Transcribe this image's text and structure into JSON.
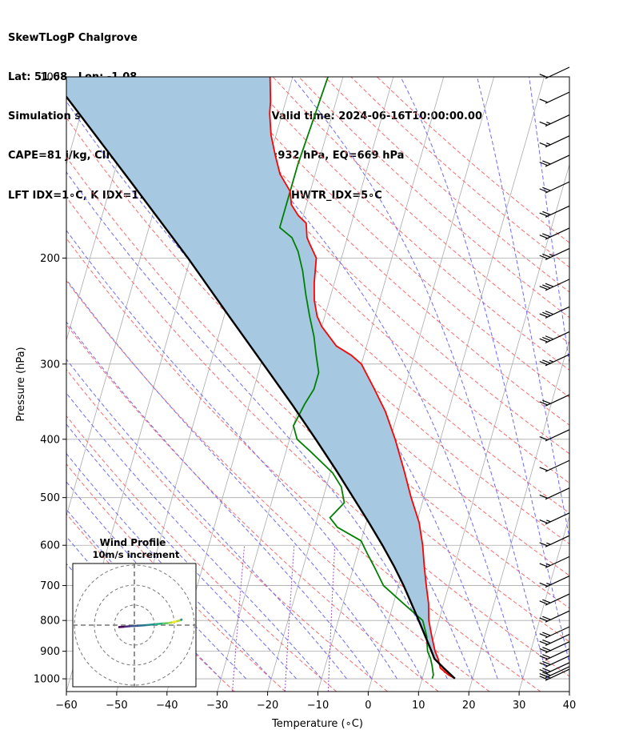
{
  "header": {
    "line1": "SkewTLogP Chalgrove",
    "line2": "Lat: 51.68   Lon: -1.08",
    "line3": "Simulation start time: 2024-06-14_00:00:00, Valid time: 2024-06-16T10:00:00.00",
    "line4": "CAPE=81 j/kg, CIN=0 j/kg, LCL=926 hPa, LFC=932 hPa, EQ=669 hPa",
    "line5": "LFT IDX=1∘C, K IDX=17∘C, TOTAL TOTS=48∘C, SHWTR_IDX=5∘C"
  },
  "colors": {
    "temperature": "#ff0000",
    "dewpoint": "#008000",
    "parcel": "#000000",
    "cape_fill": "#a6c8e1",
    "cin_fill": "#f4a0a0",
    "dry_adiabat": "#ff6a6a",
    "moist_adiabat": "#6b6bff",
    "mixing_ratio": "#9a4fd0",
    "isotherm": "#aaaaaa"
  },
  "chart_data": [
    {
      "type": "line",
      "subtype": "skew-T log-P",
      "xlabel": "Temperature (∘C)",
      "ylabel": "Pressure (hPa)",
      "xlim": [
        -60,
        40
      ],
      "ylim": [
        1050,
        100
      ],
      "y_scale": "log",
      "x_ticks": [
        -60,
        -50,
        -40,
        -30,
        -20,
        -10,
        0,
        10,
        20,
        30,
        40
      ],
      "y_ticks": [
        1000,
        900,
        800,
        700,
        600,
        500,
        400,
        300,
        200,
        100
      ],
      "grid": true,
      "series": [
        {
          "key": "temperature",
          "points": [
            [
              999,
              16.5
            ],
            [
              985,
              15
            ],
            [
              960,
              13
            ],
            [
              925,
              12
            ],
            [
              900,
              11
            ],
            [
              850,
              9.5
            ],
            [
              800,
              8
            ],
            [
              750,
              7
            ],
            [
              700,
              5.5
            ],
            [
              650,
              4
            ],
            [
              600,
              2.5
            ],
            [
              550,
              0.5
            ],
            [
              500,
              -2.5
            ],
            [
              450,
              -5.5
            ],
            [
              400,
              -9
            ],
            [
              360,
              -12.5
            ],
            [
              330,
              -16
            ],
            [
              300,
              -20
            ],
            [
              290,
              -22.5
            ],
            [
              280,
              -26
            ],
            [
              260,
              -30
            ],
            [
              250,
              -31.5
            ],
            [
              235,
              -33
            ],
            [
              220,
              -34
            ],
            [
              200,
              -35
            ],
            [
              190,
              -37
            ],
            [
              185,
              -38
            ],
            [
              175,
              -39
            ],
            [
              170,
              -41
            ],
            [
              163,
              -43
            ],
            [
              155,
              -44
            ],
            [
              145,
              -47
            ],
            [
              135,
              -49
            ],
            [
              125,
              -51
            ],
            [
              115,
              -52.5
            ],
            [
              110,
              -53
            ],
            [
              100,
              -54.5
            ]
          ]
        },
        {
          "key": "dewpoint",
          "points": [
            [
              999,
              12
            ],
            [
              985,
              12
            ],
            [
              950,
              11.2
            ],
            [
              925,
              10.5
            ],
            [
              900,
              9.5
            ],
            [
              850,
              8.5
            ],
            [
              800,
              6.8
            ],
            [
              750,
              2
            ],
            [
              700,
              -3
            ],
            [
              650,
              -6
            ],
            [
              620,
              -8
            ],
            [
              590,
              -10
            ],
            [
              560,
              -15.5
            ],
            [
              540,
              -17.5
            ],
            [
              510,
              -15.5
            ],
            [
              480,
              -17
            ],
            [
              455,
              -19.5
            ],
            [
              420,
              -25
            ],
            [
              400,
              -28.5
            ],
            [
              380,
              -30
            ],
            [
              350,
              -29
            ],
            [
              330,
              -28
            ],
            [
              310,
              -28
            ],
            [
              290,
              -29.5
            ],
            [
              270,
              -31
            ],
            [
              250,
              -33
            ],
            [
              230,
              -35
            ],
            [
              210,
              -37
            ],
            [
              195,
              -39
            ],
            [
              185,
              -41
            ],
            [
              178,
              -44
            ],
            [
              140,
              -44
            ],
            [
              100,
              -43
            ]
          ]
        },
        {
          "key": "parcel",
          "points": [
            [
              999,
              16.5
            ],
            [
              960,
              13.7
            ],
            [
              926,
              11.3
            ],
            [
              900,
              10.3
            ],
            [
              850,
              8.2
            ],
            [
              800,
              6
            ],
            [
              750,
              3.6
            ],
            [
              700,
              1
            ],
            [
              650,
              -2
            ],
            [
              600,
              -5.5
            ],
            [
              550,
              -9.5
            ],
            [
              500,
              -14
            ],
            [
              450,
              -19
            ],
            [
              400,
              -24.8
            ],
            [
              350,
              -31.5
            ],
            [
              300,
              -39.5
            ],
            [
              250,
              -49
            ],
            [
              200,
              -60.5
            ],
            [
              150,
              -76
            ],
            [
              100,
              -98
            ]
          ]
        }
      ],
      "cin_region": {
        "from_hpa": 999,
        "to_hpa": 926
      },
      "cape_region": {
        "from_hpa": 926,
        "to_hpa": 100
      },
      "wind_barbs": {
        "side": "right",
        "pressure_hpa": [
          1000,
          990,
          975,
          950,
          925,
          900,
          875,
          850,
          800,
          750,
          700,
          650,
          600,
          550,
          500,
          450,
          400,
          350,
          300,
          275,
          250,
          225,
          200,
          185,
          170,
          155,
          140,
          130,
          120,
          110,
          100
        ],
        "speed_kt": [
          20,
          20,
          20,
          20,
          20,
          20,
          20,
          20,
          20,
          20,
          15,
          15,
          15,
          15,
          10,
          10,
          10,
          20,
          25,
          30,
          30,
          30,
          25,
          20,
          20,
          20,
          20,
          15,
          15,
          10,
          10
        ],
        "direction": "westerly"
      }
    },
    {
      "type": "scatter",
      "subtype": "hodograph",
      "title": "Wind Profile",
      "subtitle": "10m/s increment",
      "ring_step_ms": 10,
      "rings": 3,
      "points": [
        [
          -8,
          -1
        ],
        [
          -5,
          -0.8
        ],
        [
          -2,
          -0.5
        ],
        [
          2,
          -0.3
        ],
        [
          6,
          0
        ],
        [
          10,
          0.4
        ],
        [
          14,
          0.8
        ],
        [
          17,
          1
        ],
        [
          19,
          1.4
        ],
        [
          21,
          1.9
        ],
        [
          23,
          2.4
        ],
        [
          24,
          3
        ]
      ]
    }
  ]
}
